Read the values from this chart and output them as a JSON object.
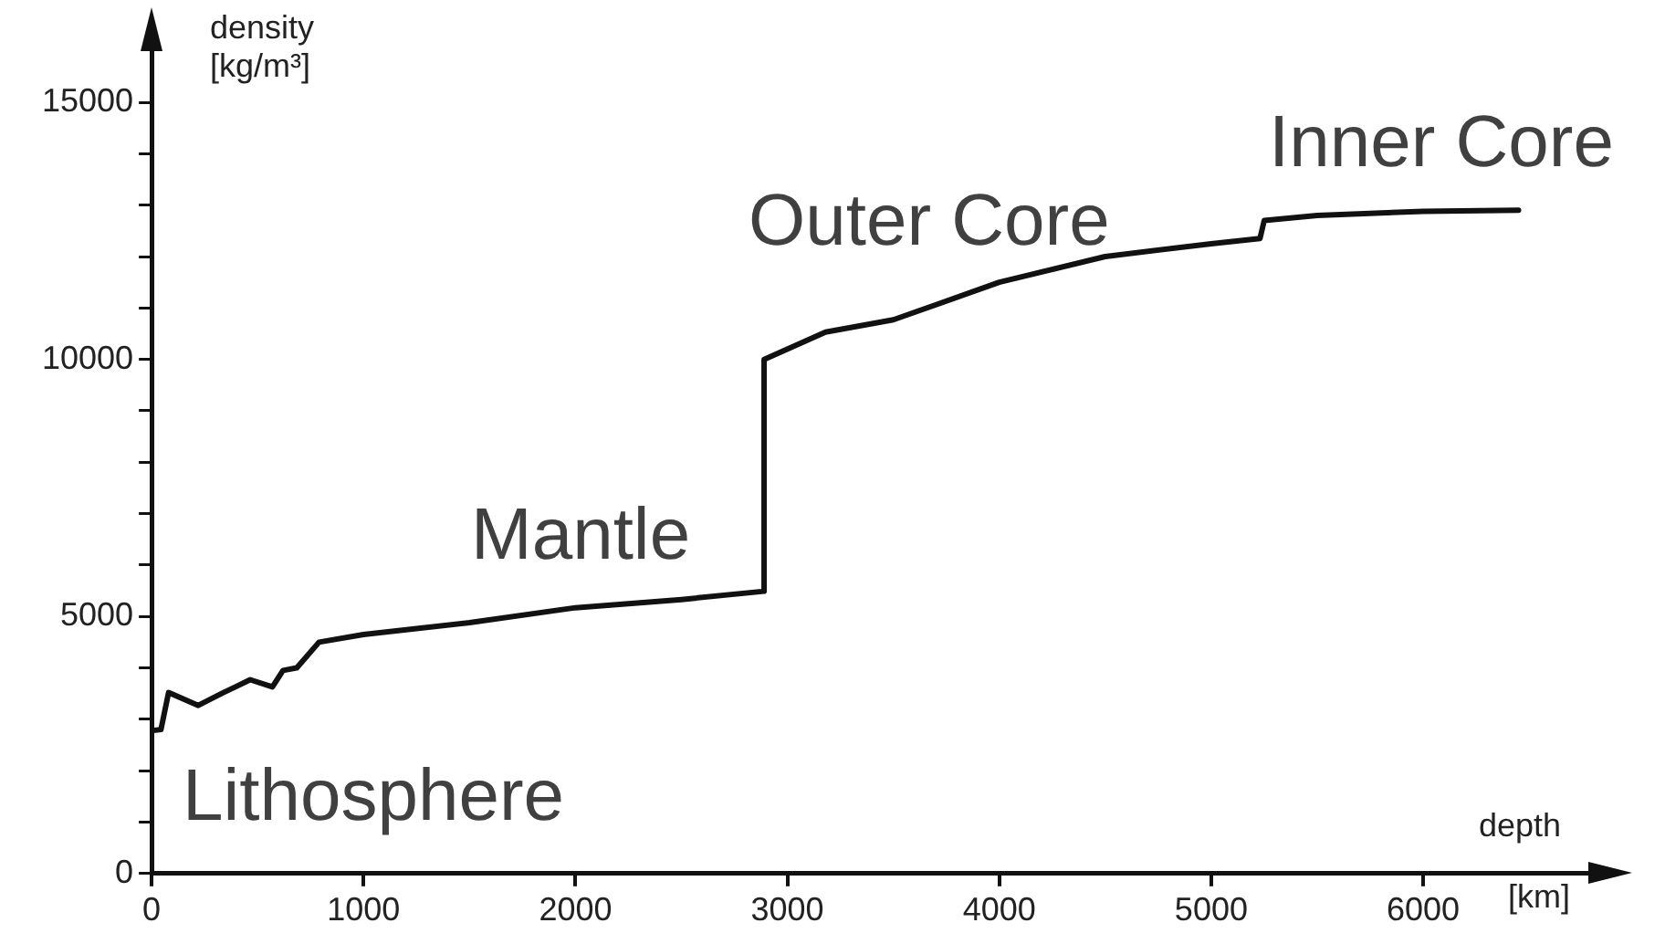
{
  "chart_data": {
    "type": "line",
    "xlabel": "depth",
    "ylabel": "density [kg/m³]",
    "annotations": [
      "Lithosphere",
      "Mantle",
      "Outer Core",
      "Inner Core",
      "[km]"
    ],
    "x": [
      0,
      44,
      80,
      220,
      330,
      465,
      570,
      620,
      685,
      790,
      1000,
      1500,
      2000,
      2500,
      2890,
      2890,
      3180,
      3500,
      4000,
      4500,
      5000,
      5230,
      5250,
      5500,
      6000,
      6450
    ],
    "series": [
      {
        "color": "#111111",
        "values": [
          2780,
          2800,
          3520,
          3270,
          3500,
          3770,
          3630,
          3950,
          4000,
          4500,
          4650,
          4880,
          5170,
          5330,
          5490,
          10000,
          10530,
          10770,
          11500,
          12000,
          12250,
          12350,
          12700,
          12800,
          12880,
          12900
        ]
      }
    ],
    "xlim": [
      0,
      6900
    ],
    "xticks": [
      0,
      1000,
      2000,
      3000,
      4000,
      5000,
      6000
    ],
    "ylim": [
      0,
      16500
    ],
    "yticks": [
      0,
      {
        "value": 1000,
        "label": null
      },
      {
        "value": 2000,
        "label": null
      },
      {
        "value": 3000,
        "label": null
      },
      {
        "value": 4000,
        "label": null
      },
      5000,
      {
        "value": 6000,
        "label": null
      },
      {
        "value": 7000,
        "label": null
      },
      {
        "value": 8000,
        "label": null
      },
      {
        "value": 9000,
        "label": null
      },
      10000,
      {
        "value": 11000,
        "label": null
      },
      {
        "value": 12000,
        "label": null
      },
      {
        "value": 13000,
        "label": null
      },
      {
        "value": 14000,
        "label": null
      },
      15000
    ],
    "grid": false,
    "legend": false,
    "marker": "none",
    "line_style": "solid"
  }
}
